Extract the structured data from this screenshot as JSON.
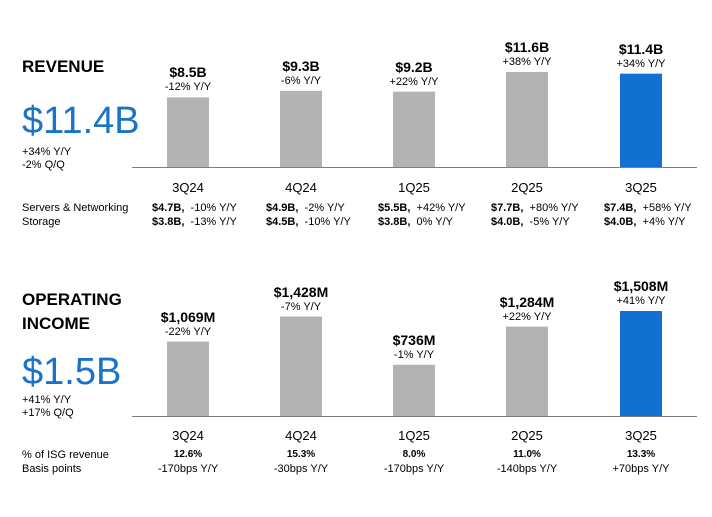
{
  "colors": {
    "bar_gray": "#b3b3b3",
    "bar_highlight": "#1270d0",
    "big_value": "#1a73c8",
    "axis": "#7f7f7f"
  },
  "revenue": {
    "title": "REVENUE",
    "big_value": "$11.4B",
    "yoy": "+34% Y/Y",
    "qoq": "-2% Q/Q",
    "rows": [
      {
        "label": "Servers & Networking",
        "cells": [
          {
            "value": "$4.7B,",
            "change": "-10% Y/Y"
          },
          {
            "value": "$4.9B,",
            "change": "-2% Y/Y"
          },
          {
            "value": "$5.5B,",
            "change": "+42% Y/Y"
          },
          {
            "value": "$7.7B,",
            "change": "+80% Y/Y"
          },
          {
            "value": "$7.4B,",
            "change": "+58% Y/Y"
          }
        ]
      },
      {
        "label": "Storage",
        "cells": [
          {
            "value": "$3.8B,",
            "change": "-13% Y/Y"
          },
          {
            "value": "$4.5B,",
            "change": "-10% Y/Y"
          },
          {
            "value": "$3.8B,",
            "change": "0% Y/Y"
          },
          {
            "value": "$4.0B,",
            "change": "-5% Y/Y"
          },
          {
            "value": "$4.0B,",
            "change": "+4% Y/Y"
          }
        ]
      }
    ]
  },
  "operating_income": {
    "title_line1": "OPERATING",
    "title_line2": "INCOME",
    "big_value": "$1.5B",
    "yoy": "+41% Y/Y",
    "qoq": "+17% Q/Q",
    "rows": [
      {
        "label": "% of ISG revenue",
        "bold": true,
        "cells": [
          "12.6%",
          "15.3%",
          "8.0%",
          "11.0%",
          "13.3%"
        ]
      },
      {
        "label": "Basis points",
        "bold": false,
        "cells": [
          "-170bps Y/Y",
          "-30bps Y/Y",
          "-170bps Y/Y",
          "-140bps Y/Y",
          "+70bps Y/Y"
        ]
      }
    ]
  },
  "chart_data": [
    {
      "type": "bar",
      "title": "REVENUE",
      "categories": [
        "3Q24",
        "4Q24",
        "1Q25",
        "2Q25",
        "3Q25"
      ],
      "values": [
        8.5,
        9.3,
        9.2,
        11.6,
        11.4
      ],
      "value_labels": [
        "$8.5B",
        "$9.3B",
        "$9.2B",
        "$11.6B",
        "$11.4B"
      ],
      "yoy_labels": [
        "-12% Y/Y",
        "-6% Y/Y",
        "+22% Y/Y",
        "+38% Y/Y",
        "+34% Y/Y"
      ],
      "highlight_index": 4,
      "grid": false
    },
    {
      "type": "bar",
      "title": "OPERATING INCOME",
      "categories": [
        "3Q24",
        "4Q24",
        "1Q25",
        "2Q25",
        "3Q25"
      ],
      "values": [
        1069,
        1428,
        736,
        1284,
        1508
      ],
      "value_labels": [
        "$1,069M",
        "$1,428M",
        "$736M",
        "$1,284M",
        "$1,508M"
      ],
      "yoy_labels": [
        "-22% Y/Y",
        "-7% Y/Y",
        "-1% Y/Y",
        "+22% Y/Y",
        "+41% Y/Y"
      ],
      "highlight_index": 4,
      "grid": false
    }
  ]
}
